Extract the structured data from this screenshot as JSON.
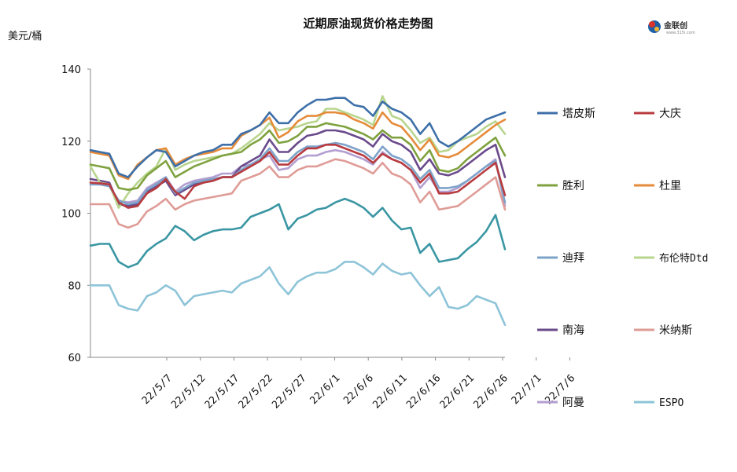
{
  "chart_data": {
    "type": "line",
    "title": "近期原油现货价格走势图",
    "ylabel": "美元/桶",
    "xlabel": "",
    "ylim": [
      60,
      140
    ],
    "yticks": [
      60,
      80,
      100,
      120,
      140
    ],
    "x_tick_labels": [
      "22/5/7",
      "22/5/12",
      "22/5/17",
      "22/5/22",
      "22/5/27",
      "22/6/1",
      "22/6/6",
      "22/6/11",
      "22/6/16",
      "22/6/21",
      "22/6/26",
      "22/7/1",
      "22/7/6"
    ],
    "grid": false,
    "legend_position": "right",
    "x_count": 45,
    "series": [
      {
        "name": "塔皮斯",
        "color": "#3d6fa8",
        "values": [
          117.5,
          117,
          116.5,
          111,
          110,
          113,
          115.5,
          117.5,
          117,
          113,
          114.5,
          116,
          117,
          117.5,
          119,
          119,
          122,
          123,
          124.5,
          128,
          125,
          125,
          128,
          130,
          131.5,
          131.5,
          132,
          132,
          130,
          129.5,
          127,
          131,
          129,
          128,
          126,
          122,
          125,
          120,
          118.5,
          120,
          122,
          124,
          126,
          127,
          128
        ]
      },
      {
        "name": "大庆",
        "color": "#b83b3f",
        "values": [
          108.5,
          108.3,
          108,
          103,
          101.5,
          102,
          105.5,
          107,
          109.5,
          106,
          104,
          107.5,
          108.5,
          109,
          110,
          110,
          111.5,
          113,
          114.5,
          117,
          113.5,
          113.5,
          116,
          118,
          118,
          119,
          119,
          118,
          117,
          116,
          114,
          116.5,
          115,
          114,
          112,
          108.5,
          111,
          105.5,
          105.5,
          106,
          108,
          110,
          112,
          114,
          105
        ]
      },
      {
        "name": "胜利",
        "color": "#7fa23f",
        "values": [
          113.5,
          113,
          112.5,
          107,
          106.5,
          107,
          110.5,
          112.5,
          114.5,
          110,
          111.5,
          113,
          114,
          115,
          116,
          116.5,
          117,
          119,
          120.5,
          123,
          119.5,
          120,
          121.5,
          124,
          124,
          125,
          124.5,
          124,
          123,
          122,
          120.5,
          123,
          121,
          121,
          119,
          114.5,
          117.5,
          112,
          111.5,
          112.5,
          115,
          117,
          119,
          121,
          116
        ]
      },
      {
        "name": "杜里",
        "color": "#e58b3a",
        "values": [
          117,
          116.5,
          116,
          110.5,
          109.5,
          113.5,
          115.5,
          117.5,
          118,
          113.5,
          115,
          116,
          116.5,
          117,
          118,
          118,
          121.5,
          123,
          124.5,
          126.5,
          121,
          122.5,
          125.5,
          127,
          127,
          128,
          128,
          127.5,
          126,
          125,
          123.5,
          128,
          125,
          124,
          121,
          117.5,
          120.5,
          116,
          115.5,
          116.5,
          118.5,
          120.5,
          122.5,
          124.5,
          126
        ]
      },
      {
        "name": "迪拜",
        "color": "#7ea3c9",
        "values": [
          108,
          108,
          107.5,
          103.5,
          102.5,
          103,
          106.5,
          108,
          110,
          105.5,
          107,
          108.5,
          109,
          109.5,
          110,
          110,
          112,
          113.5,
          115,
          118,
          114.5,
          114.5,
          117,
          118.5,
          118.5,
          119,
          119.5,
          119,
          118,
          117,
          115,
          118.5,
          116,
          115,
          113,
          109.5,
          112,
          107,
          107,
          107.5,
          109,
          111,
          113,
          114.5,
          103
        ]
      },
      {
        "name": "布伦特Dtd",
        "color": "#b8d58e",
        "values": [
          113,
          108.5,
          108,
          101.5,
          105.5,
          108.5,
          111,
          113,
          118,
          112,
          113.5,
          114.5,
          115,
          115.5,
          116,
          116.5,
          118,
          120,
          122,
          125,
          123,
          123.5,
          124,
          125,
          125.5,
          129,
          129,
          128,
          127,
          126,
          124.5,
          132.5,
          127,
          126,
          123,
          119.5,
          121,
          117,
          117.5,
          120,
          121,
          122,
          124,
          125.5,
          122
        ]
      },
      {
        "name": "南海",
        "color": "#6a4a8b",
        "values": [
          109.5,
          109,
          108.5,
          102.5,
          102,
          102.5,
          106,
          107.5,
          109,
          105,
          106.5,
          108,
          108.5,
          109,
          110,
          110,
          113,
          114.5,
          116,
          120.5,
          117,
          117,
          119.5,
          121.5,
          122,
          123,
          123,
          122.5,
          121.5,
          120.5,
          118.5,
          122,
          120,
          119,
          117,
          112,
          115,
          111,
          110.5,
          111.5,
          113.5,
          115.5,
          117.5,
          119,
          110
        ]
      },
      {
        "name": "米纳斯",
        "color": "#df9c97",
        "values": [
          102.5,
          102.5,
          102.5,
          97,
          96,
          97,
          100.5,
          102,
          104,
          101,
          102.5,
          103.5,
          104,
          104.5,
          105,
          105.5,
          109,
          110,
          111,
          113,
          110,
          110,
          112,
          113,
          113,
          114,
          115,
          114.5,
          113.5,
          112.5,
          111,
          114,
          111,
          110,
          108,
          103,
          106,
          101,
          101.5,
          102,
          104,
          106,
          108,
          110,
          101
        ]
      },
      {
        "name": "阿曼",
        "color": "#b39fd0",
        "values": [
          108,
          108,
          107.5,
          103.5,
          103,
          103.5,
          107,
          108.5,
          110,
          106,
          108,
          109,
          109.5,
          110,
          111,
          111,
          113,
          113.5,
          115,
          116,
          112,
          112.5,
          115,
          116,
          116,
          117,
          117.5,
          117,
          116,
          115,
          113.5,
          117,
          115,
          114,
          112,
          107,
          110,
          106,
          106,
          107,
          109,
          111,
          113,
          115,
          102
        ]
      },
      {
        "name": "ESPO",
        "color": "#8ec4d8",
        "values": [
          80,
          80,
          80,
          74.5,
          73.5,
          73,
          77,
          78,
          80,
          78.5,
          74.5,
          77,
          77.5,
          78,
          78.5,
          78,
          80.5,
          81.5,
          82.5,
          85,
          80.5,
          77.5,
          81,
          82.5,
          83.5,
          83.5,
          84.5,
          86.5,
          86.5,
          85,
          83,
          86,
          84,
          83,
          83.5,
          80,
          77,
          79.5,
          74,
          73.5,
          74.5,
          77,
          76,
          75,
          69
        ]
      }
    ]
  },
  "extra_line": {
    "name": "",
    "color": "#3a96a3",
    "values": [
      91,
      91.5,
      91.5,
      86.5,
      85,
      86,
      89.5,
      91.5,
      93,
      96.5,
      95,
      92.5,
      94,
      95,
      95.5,
      95.5,
      96,
      99,
      100,
      101,
      102.5,
      95.5,
      98.5,
      99.5,
      101,
      101.5,
      103,
      104,
      103,
      101.5,
      99,
      101.5,
      98,
      95.5,
      96,
      89,
      91.5,
      86.5,
      87,
      87.5,
      90,
      92,
      95,
      99.5,
      90
    ]
  },
  "logo": {
    "text": "金联创",
    "sub": "www.315i.com"
  }
}
